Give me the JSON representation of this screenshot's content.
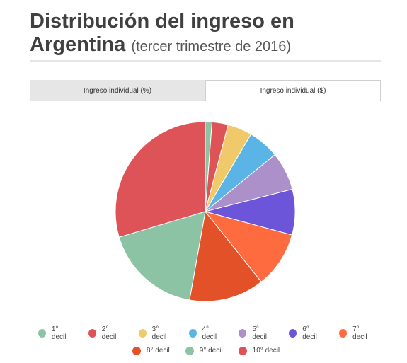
{
  "header": {
    "title": "Distribución del ingreso en Argentina",
    "subtitle": "(tercer trimestre de 2016)"
  },
  "tabs": [
    {
      "label": "Ingreso individual (%)",
      "active": false
    },
    {
      "label": "Ingreso individual ($)",
      "active": true
    }
  ],
  "chart_data": {
    "type": "pie",
    "title": "",
    "categories": [
      "1° decil",
      "2° decil",
      "3° decil",
      "4° decil",
      "5° decil",
      "6° decil",
      "7° decil",
      "8° decil",
      "9° decil",
      "10° decil"
    ],
    "values": [
      1.2,
      2.9,
      4.4,
      5.6,
      6.9,
      8.2,
      10.1,
      13.5,
      17.6,
      29.6
    ],
    "colors": [
      "#8dc3a5",
      "#dd5358",
      "#f0ca6a",
      "#5ab4e5",
      "#ab90c9",
      "#6c55d8",
      "#fd6b3e",
      "#e35129",
      "#8dc3a5",
      "#dd5358"
    ],
    "legend_position": "bottom"
  }
}
